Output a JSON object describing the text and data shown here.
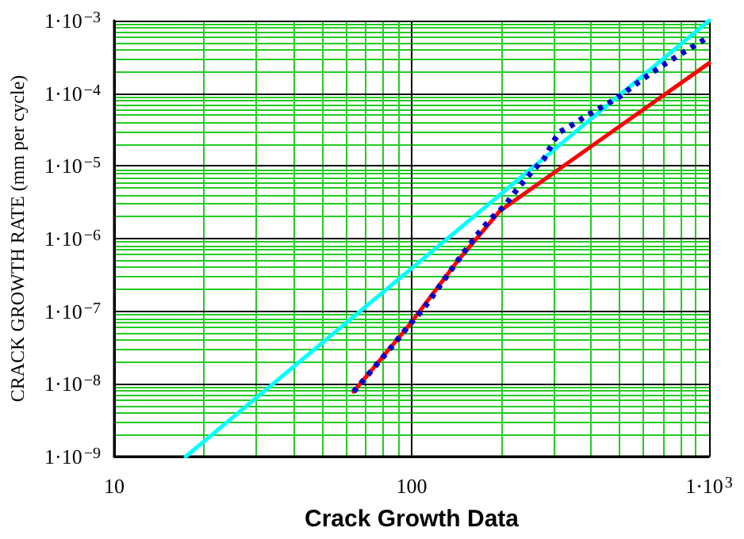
{
  "chart_data": {
    "type": "line",
    "xlabel": "Crack Growth Data",
    "ylabel": "CRACK GROWTH RATE (mm per cycle)",
    "log": "xy",
    "grid": true,
    "marker": "none",
    "xlim": [
      10,
      1000
    ],
    "ylim": [
      1e-09,
      0.001
    ],
    "xticks": [
      10,
      {
        "value": 20,
        "label": null
      },
      {
        "value": 30,
        "label": null
      },
      {
        "value": 40,
        "label": null
      },
      {
        "value": 50,
        "label": null
      },
      {
        "value": 60,
        "label": null
      },
      {
        "value": 70,
        "label": null
      },
      {
        "value": 80,
        "label": null
      },
      {
        "value": 90,
        "label": null
      },
      100,
      {
        "value": 200,
        "label": null
      },
      {
        "value": 300,
        "label": null
      },
      {
        "value": 400,
        "label": null
      },
      {
        "value": 500,
        "label": null
      },
      {
        "value": 600,
        "label": null
      },
      {
        "value": 700,
        "label": null
      },
      {
        "value": 800,
        "label": null
      },
      {
        "value": 900,
        "label": null
      },
      {
        "value": 1000,
        "label": "1·10$^{3}$"
      }
    ],
    "yticks": [
      {
        "value": 1e-09,
        "label": "1·10$^{−9}$"
      },
      {
        "value": 2e-09,
        "label": null
      },
      {
        "value": 3e-09,
        "label": null
      },
      {
        "value": 4e-09,
        "label": null
      },
      {
        "value": 5e-09,
        "label": null
      },
      {
        "value": 6e-09,
        "label": null
      },
      {
        "value": 7e-09,
        "label": null
      },
      {
        "value": 8e-09,
        "label": null
      },
      {
        "value": 9e-09,
        "label": null
      },
      {
        "value": 1e-08,
        "label": "1·10$^{−8}$"
      },
      {
        "value": 2e-08,
        "label": null
      },
      {
        "value": 3e-08,
        "label": null
      },
      {
        "value": 4e-08,
        "label": null
      },
      {
        "value": 5e-08,
        "label": null
      },
      {
        "value": 6e-08,
        "label": null
      },
      {
        "value": 7e-08,
        "label": null
      },
      {
        "value": 8e-08,
        "label": null
      },
      {
        "value": 9e-08,
        "label": null
      },
      {
        "value": 1e-07,
        "label": "1·10$^{−7}$"
      },
      {
        "value": 2e-07,
        "label": null
      },
      {
        "value": 3e-07,
        "label": null
      },
      {
        "value": 4e-07,
        "label": null
      },
      {
        "value": 5e-07,
        "label": null
      },
      {
        "value": 6e-07,
        "label": null
      },
      {
        "value": 7e-07,
        "label": null
      },
      {
        "value": 8e-07,
        "label": null
      },
      {
        "value": 9e-07,
        "label": null
      },
      {
        "value": 1e-06,
        "label": "1·10$^{−6}$"
      },
      {
        "value": 2e-06,
        "label": null
      },
      {
        "value": 3e-06,
        "label": null
      },
      {
        "value": 4e-06,
        "label": null
      },
      {
        "value": 5e-06,
        "label": null
      },
      {
        "value": 6e-06,
        "label": null
      },
      {
        "value": 7e-06,
        "label": null
      },
      {
        "value": 8e-06,
        "label": null
      },
      {
        "value": 9e-06,
        "label": null
      },
      {
        "value": 1e-05,
        "label": "1·10$^{−5}$"
      },
      {
        "value": 2e-05,
        "label": null
      },
      {
        "value": 3e-05,
        "label": null
      },
      {
        "value": 4e-05,
        "label": null
      },
      {
        "value": 5e-05,
        "label": null
      },
      {
        "value": 6e-05,
        "label": null
      },
      {
        "value": 7e-05,
        "label": null
      },
      {
        "value": 8e-05,
        "label": null
      },
      {
        "value": 9e-05,
        "label": null
      },
      {
        "value": 0.0001,
        "label": "1·10$^{−4}$"
      },
      {
        "value": 0.0002,
        "label": null
      },
      {
        "value": 0.0003,
        "label": null
      },
      {
        "value": 0.0004,
        "label": null
      },
      {
        "value": 0.0005,
        "label": null
      },
      {
        "value": 0.0006,
        "label": null
      },
      {
        "value": 0.0007,
        "label": null
      },
      {
        "value": 0.0008,
        "label": null
      },
      {
        "value": 0.0009,
        "label": null
      },
      {
        "value": 0.001,
        "label": "1·10$^{−3}$"
      }
    ],
    "series": [
      {
        "color": "#00ffff",
        "line_style": "solid",
        "x": [
          17.4,
          1000
        ],
        "values": [
          1e-09,
          0.001
        ]
      },
      {
        "color": "#ff0000",
        "line_style": "solid",
        "x": [
          63.8,
          98,
          142,
          198,
          1000
        ],
        "values": [
          7.8e-09,
          6.4e-08,
          4.8e-07,
          2.4e-06,
          0.00026
        ]
      },
      {
        "color": "#0000cc",
        "line_style": "dotted",
        "x": [
          63.8,
          75,
          87,
          98,
          110,
          125,
          142,
          165,
          185,
          205,
          229,
          255,
          279,
          300,
          316,
          344,
          390,
          440,
          500,
          562,
          640,
          718,
          841,
          1000
        ],
        "values": [
          7.8e-09,
          1.7e-08,
          3.5e-08,
          6.4e-08,
          1.1e-07,
          2.3e-07,
          4.8e-07,
          1.1e-06,
          1.9e-06,
          2.8e-06,
          5.1e-06,
          8.5e-06,
          1.26e-05,
          2.2e-05,
          2.96e-05,
          3.6e-05,
          5e-05,
          6.6e-05,
          9e-05,
          0.00013,
          0.00019,
          0.00026,
          0.00039,
          0.0006
        ]
      }
    ]
  }
}
